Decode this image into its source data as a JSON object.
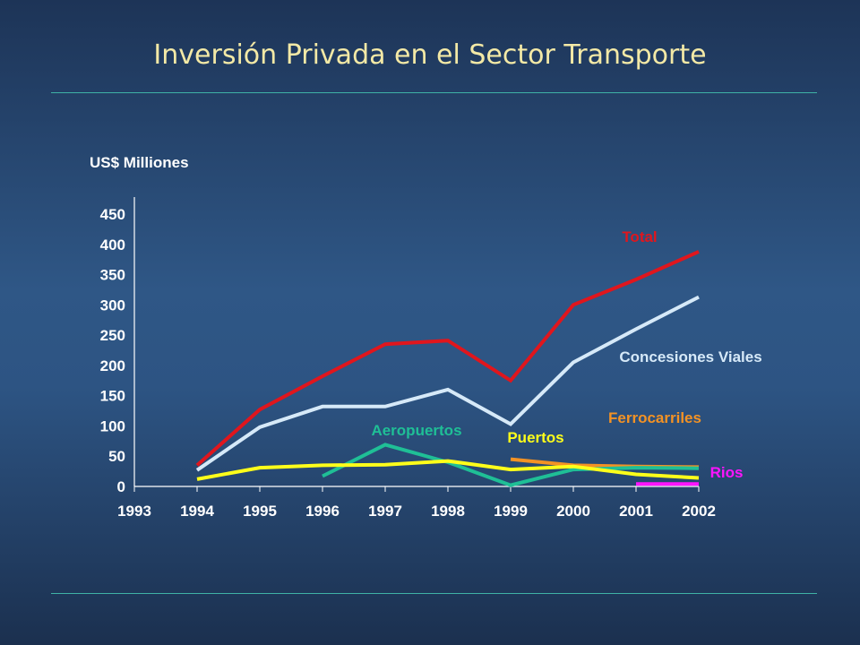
{
  "slide": {
    "title": "Inversión Privada en el Sector Transporte"
  },
  "chart_data": {
    "type": "line",
    "title": "",
    "xlabel": "",
    "ylabel": "US$ Milliones",
    "x": [
      1993,
      1994,
      1995,
      1996,
      1997,
      1998,
      1999,
      2000,
      2001,
      2002
    ],
    "x_ticks": [
      "1993",
      "1994",
      "1995",
      "1996",
      "1997",
      "1998",
      "1999",
      "2000",
      "2001",
      "2002"
    ],
    "ylim": [
      0,
      450
    ],
    "y_ticks": [
      0,
      50,
      100,
      150,
      200,
      250,
      300,
      350,
      400,
      450
    ],
    "grid": false,
    "legend": "inline labels",
    "series": [
      {
        "name": "Total",
        "color": "#e0161d",
        "points": [
          [
            1994,
            35
          ],
          [
            1995,
            127
          ],
          [
            1996,
            182
          ],
          [
            1997,
            235
          ],
          [
            1998,
            241
          ],
          [
            1999,
            175
          ],
          [
            2000,
            300
          ],
          [
            2001,
            342
          ],
          [
            2002,
            388
          ]
        ]
      },
      {
        "name": "Concesiones Viales",
        "color": "#d6e9f8",
        "points": [
          [
            1994,
            27
          ],
          [
            1995,
            98
          ],
          [
            1996,
            132
          ],
          [
            1997,
            132
          ],
          [
            1998,
            160
          ],
          [
            1999,
            103
          ],
          [
            2000,
            205
          ],
          [
            2001,
            260
          ],
          [
            2002,
            313
          ]
        ]
      },
      {
        "name": "Ferrocarriles",
        "color": "#f39224",
        "points": [
          [
            1999,
            45
          ],
          [
            2000,
            35
          ],
          [
            2001,
            33
          ],
          [
            2002,
            32
          ]
        ]
      },
      {
        "name": "Aeropuertos",
        "color": "#1fbf96",
        "points": [
          [
            1996,
            17
          ],
          [
            1997,
            69
          ],
          [
            1998,
            40
          ],
          [
            1999,
            2
          ],
          [
            2000,
            28
          ],
          [
            2001,
            31
          ],
          [
            2002,
            30
          ]
        ]
      },
      {
        "name": "Puertos",
        "color": "#ffff1a",
        "points": [
          [
            1994,
            12
          ],
          [
            1995,
            31
          ],
          [
            1996,
            35
          ],
          [
            1997,
            36
          ],
          [
            1998,
            42
          ],
          [
            1999,
            28
          ],
          [
            2000,
            33
          ],
          [
            2001,
            20
          ],
          [
            2002,
            14
          ]
        ]
      },
      {
        "name": "Rios",
        "color": "#ff14ff",
        "points": [
          [
            2001,
            4
          ],
          [
            2002,
            4
          ]
        ]
      }
    ]
  }
}
